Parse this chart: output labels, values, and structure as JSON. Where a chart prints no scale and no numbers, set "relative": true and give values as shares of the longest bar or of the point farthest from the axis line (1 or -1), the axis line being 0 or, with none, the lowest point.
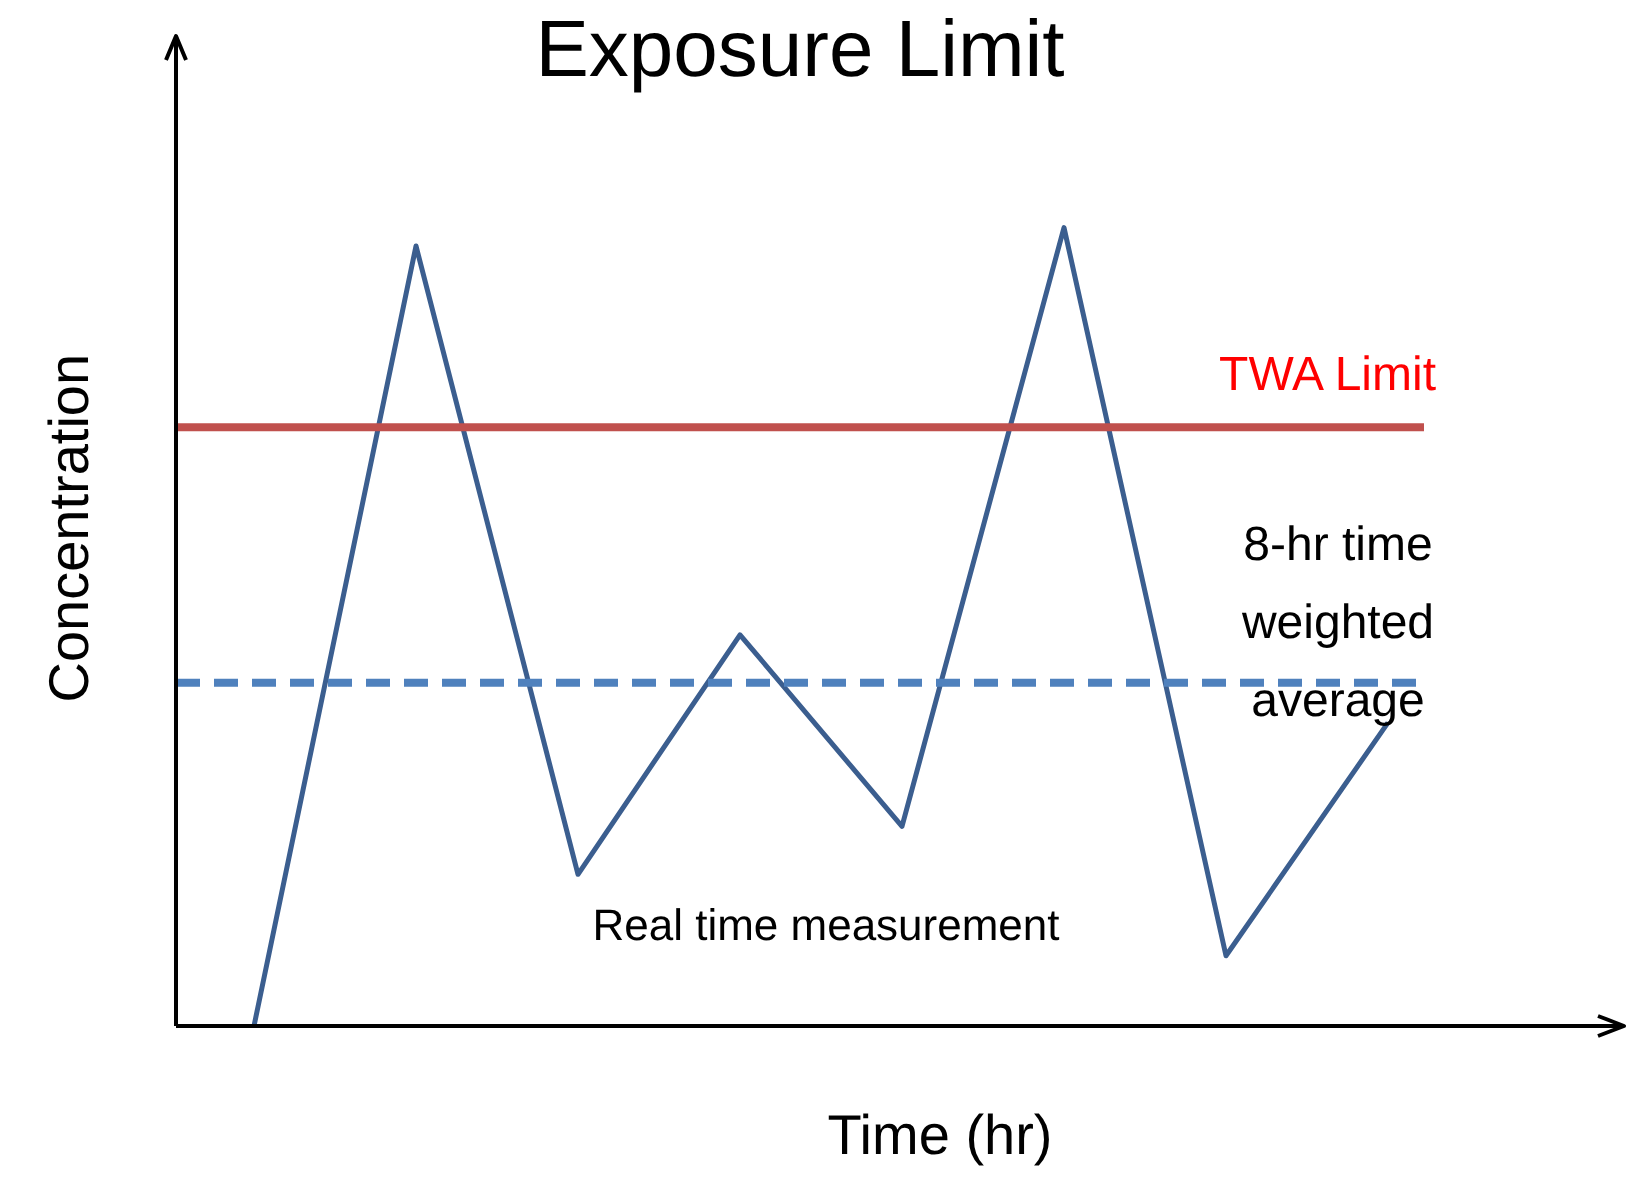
{
  "chart_data": {
    "type": "line",
    "title": "Exposure Limit",
    "xlabel": "Time (hr)",
    "ylabel": "Concentration",
    "relative": true,
    "tick_labels": false,
    "grid": false,
    "legend": false,
    "marker": "none",
    "categories": [
      null,
      null,
      null,
      null,
      null,
      null,
      null,
      null
    ],
    "series": [
      {
        "name": "Real time measurement",
        "color": "#3b5e8f",
        "values": [
          0,
          0.977,
          0.19,
          0.49,
          0.25,
          1,
          0.088,
          0.38
        ]
      }
    ],
    "ref_lines": [
      {
        "axis": "y",
        "value": 0.75,
        "label": "TWA Limit",
        "color": "#c0504d",
        "line_style": "solid"
      },
      {
        "axis": "y",
        "value": 0.43,
        "label": "8-hr time weighted average",
        "color": "#4f81bd",
        "line_style": "dashed"
      }
    ]
  }
}
